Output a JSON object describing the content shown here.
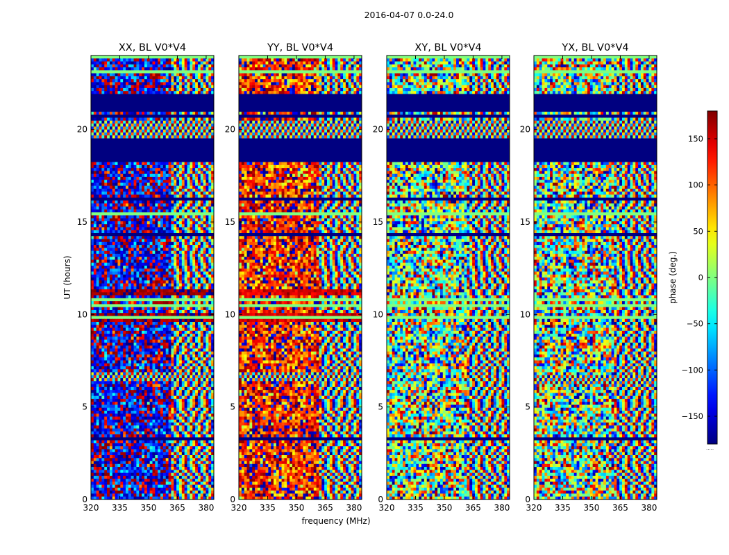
{
  "chart_data": {
    "type": "heatmap",
    "suptitle": "2016-04-07 0.0-24.0",
    "xlabel": "frequency (MHz)",
    "ylabel": "UT (hours)",
    "xlim": [
      320,
      384
    ],
    "ylim": [
      0,
      24
    ],
    "xticks": [
      320,
      335,
      350,
      365,
      380
    ],
    "yticks": [
      0,
      5,
      10,
      15,
      20
    ],
    "colorscale": "jet",
    "colorbar": {
      "label": "phase (deg.)",
      "range": [
        -180,
        180
      ],
      "ticks": [
        150,
        100,
        50,
        0,
        -50,
        -100,
        -150
      ],
      "tick_labels": [
        "150",
        "100",
        "50",
        "0",
        "−50",
        "−100",
        "−150"
      ],
      "offset_text": "....."
    },
    "panels": [
      {
        "title": "XX, BL V0*V4",
        "dominant_phase": -150,
        "strong_phase_bands": [
          [
            9.6,
            10.1,
            170
          ],
          [
            11.0,
            11.4,
            170
          ],
          [
            19.5,
            20.5,
            "wrap"
          ],
          [
            6.4,
            6.9,
            "wrap"
          ]
        ]
      },
      {
        "title": "YY, BL V0*V4",
        "dominant_phase": 130,
        "strong_phase_bands": [
          [
            9.6,
            10.1,
            150
          ],
          [
            11.0,
            11.4,
            150
          ],
          [
            19.5,
            20.5,
            "wrap"
          ],
          [
            6.4,
            6.9,
            "wrap"
          ]
        ]
      },
      {
        "title": "XY, BL V0*V4",
        "dominant_phase": 0,
        "strong_phase_bands": [
          [
            19.5,
            20.5,
            "wrap"
          ]
        ]
      },
      {
        "title": "YX, BL V0*V4",
        "dominant_phase": 0,
        "strong_phase_bands": [
          [
            19.5,
            20.5,
            "wrap"
          ],
          [
            6.3,
            6.8,
            "wrap"
          ]
        ]
      }
    ],
    "flagged_time_ranges": [
      [
        18.3,
        19.5
      ],
      [
        20.6,
        20.8
      ],
      [
        21.0,
        21.9
      ],
      [
        16.2,
        16.3
      ],
      [
        14.3,
        14.4
      ],
      [
        3.2,
        3.3
      ],
      [
        0.9,
        1.0
      ]
    ],
    "flagged_value": -180
  }
}
